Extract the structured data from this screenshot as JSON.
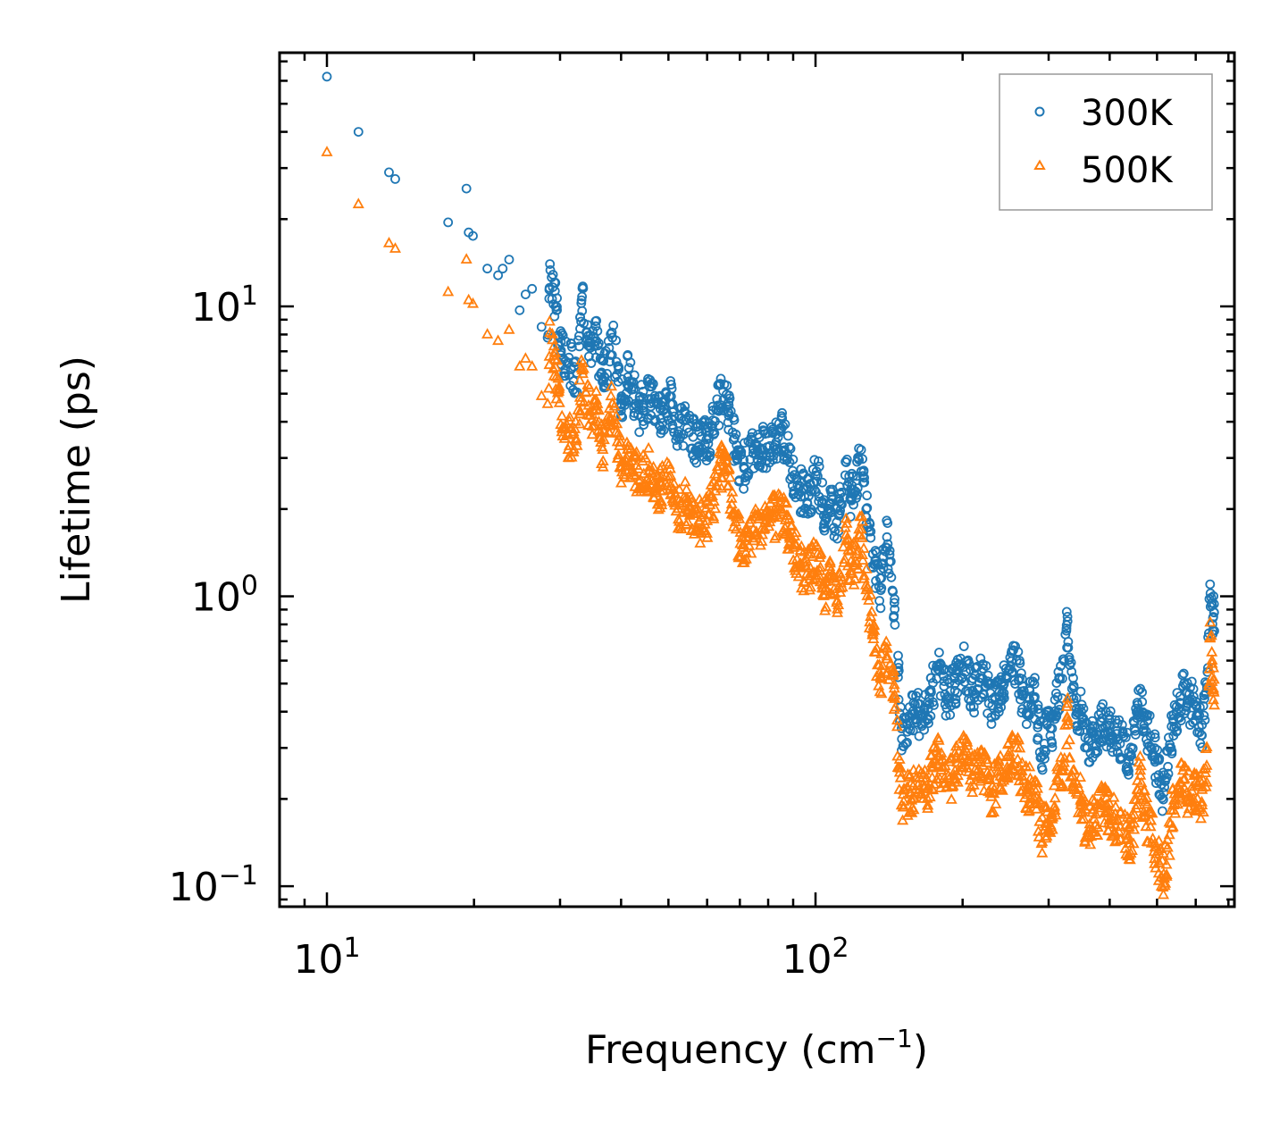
{
  "chart_data": {
    "type": "scatter",
    "title": "",
    "xlabel": "Frequency (cm",
    "xlabel_sup": "−1",
    "xlabel_end": ")",
    "ylabel": "Lifetime (ps)",
    "xscale": "log",
    "yscale": "log",
    "xlim": [
      8,
      720
    ],
    "ylim": [
      0.085,
      75
    ],
    "x_ticks": [
      {
        "value": 10,
        "base": "10",
        "exp": "1"
      },
      {
        "value": 100,
        "base": "10",
        "exp": "2"
      }
    ],
    "y_ticks": [
      {
        "value": 0.1,
        "base": "10",
        "exp": "−1"
      },
      {
        "value": 1,
        "base": "10",
        "exp": "0"
      },
      {
        "value": 10,
        "base": "10",
        "exp": "1"
      }
    ],
    "legend_position": "top-right",
    "series": [
      {
        "name": "300K",
        "marker": "circle",
        "color": "#1f77b4",
        "points": [
          [
            10,
            62
          ],
          [
            11.6,
            40
          ],
          [
            13.4,
            29
          ],
          [
            13.8,
            27.5
          ],
          [
            17.7,
            19.5
          ],
          [
            19.3,
            25.5
          ],
          [
            19.5,
            18
          ],
          [
            19.9,
            17.5
          ],
          [
            21.3,
            13.5
          ],
          [
            22.4,
            12.8
          ],
          [
            22.9,
            13.5
          ],
          [
            23.6,
            14.5
          ],
          [
            24.8,
            9.7
          ],
          [
            25.5,
            11
          ],
          [
            26.3,
            11.5
          ],
          [
            27.5,
            8.5
          ],
          [
            28.3,
            7.8
          ],
          [
            28.6,
            14
          ],
          [
            29.5,
            9.7
          ],
          [
            30.1,
            6.8
          ],
          [
            31.2,
            6.4
          ],
          [
            32.5,
            5.9
          ],
          [
            33.2,
            10.5
          ],
          [
            34.6,
            7.3
          ],
          [
            35.6,
            7.6
          ],
          [
            36.7,
            5.6
          ],
          [
            38.4,
            7.8
          ],
          [
            40.1,
            4.9
          ],
          [
            41.3,
            5.7
          ],
          [
            43.5,
            4.4
          ],
          [
            45.6,
            4.8
          ],
          [
            48.2,
            4.1
          ],
          [
            50.5,
            4.6
          ],
          [
            52.4,
            3.7
          ],
          [
            54.6,
            3.8
          ],
          [
            57.8,
            3.3
          ],
          [
            60.5,
            3.5
          ],
          [
            62.6,
            4.4
          ],
          [
            64.7,
            5.1
          ],
          [
            66.4,
            4.3
          ],
          [
            68.8,
            3.1
          ],
          [
            71.3,
            2.8
          ],
          [
            74.6,
            3.2
          ],
          [
            77.5,
            3.2
          ],
          [
            80.6,
            3.3
          ],
          [
            83.1,
            3.4
          ],
          [
            84.6,
            3.8
          ],
          [
            88.5,
            2.9
          ],
          [
            93.5,
            2.3
          ],
          [
            97.6,
            2.3
          ],
          [
            101,
            2.6
          ],
          [
            104,
            1.9
          ],
          [
            106.8,
            2.1
          ],
          [
            110.5,
            1.8
          ],
          [
            115.5,
            2.9
          ],
          [
            118.2,
            2.2
          ],
          [
            121.5,
            2.6
          ],
          [
            124,
            3.2
          ],
          [
            127,
            2.0
          ],
          [
            131,
            1.4
          ],
          [
            136,
            1.05
          ],
          [
            140,
            1.6
          ],
          [
            145,
            0.95
          ],
          [
            150,
            0.35
          ],
          [
            156,
            0.38
          ],
          [
            162,
            0.39
          ],
          [
            170,
            0.41
          ],
          [
            178,
            0.56
          ],
          [
            186,
            0.45
          ],
          [
            193,
            0.5
          ],
          [
            201,
            0.57
          ],
          [
            210,
            0.47
          ],
          [
            220,
            0.52
          ],
          [
            230,
            0.42
          ],
          [
            240,
            0.5
          ],
          [
            250,
            0.56
          ],
          [
            258,
            0.6
          ],
          [
            264,
            0.47
          ],
          [
            272,
            0.42
          ],
          [
            281,
            0.45
          ],
          [
            290,
            0.28
          ],
          [
            298,
            0.36
          ],
          [
            305,
            0.35
          ],
          [
            313,
            0.45
          ],
          [
            320,
            0.52
          ],
          [
            328,
            0.82
          ],
          [
            335,
            0.48
          ],
          [
            342,
            0.41
          ],
          [
            350,
            0.4
          ],
          [
            360,
            0.3
          ],
          [
            372,
            0.33
          ],
          [
            385,
            0.37
          ],
          [
            395,
            0.36
          ],
          [
            405,
            0.33
          ],
          [
            420,
            0.31
          ],
          [
            440,
            0.28
          ],
          [
            455,
            0.38
          ],
          [
            462,
            0.48
          ],
          [
            470,
            0.35
          ],
          [
            485,
            0.33
          ],
          [
            495,
            0.28
          ],
          [
            505,
            0.23
          ],
          [
            516,
            0.21
          ],
          [
            530,
            0.3
          ],
          [
            540,
            0.37
          ],
          [
            555,
            0.41
          ],
          [
            565,
            0.49
          ],
          [
            575,
            0.42
          ],
          [
            590,
            0.44
          ],
          [
            605,
            0.39
          ],
          [
            618,
            0.36
          ],
          [
            632,
            0.5
          ],
          [
            642,
            1.1
          ],
          [
            648,
            0.93
          ],
          [
            652,
            0.85
          ],
          [
            655,
            0.76
          ]
        ]
      },
      {
        "name": "500K",
        "marker": "triangle",
        "color": "#ff7f0e",
        "points": [
          [
            10,
            34
          ],
          [
            11.6,
            22.5
          ],
          [
            13.4,
            16.5
          ],
          [
            13.8,
            15.8
          ],
          [
            17.7,
            11.2
          ],
          [
            19.3,
            14.5
          ],
          [
            19.5,
            10.5
          ],
          [
            19.9,
            10.2
          ],
          [
            21.3,
            8
          ],
          [
            22.4,
            7.6
          ],
          [
            23.6,
            8.3
          ],
          [
            24.8,
            6.2
          ],
          [
            25.5,
            6.6
          ],
          [
            26.3,
            6.2
          ],
          [
            27.5,
            4.9
          ],
          [
            28.3,
            4.6
          ],
          [
            28.6,
            8.1
          ],
          [
            29.5,
            5.7
          ],
          [
            30.1,
            3.9
          ],
          [
            31.2,
            3.6
          ],
          [
            32.5,
            3.3
          ],
          [
            33.2,
            6.1
          ],
          [
            34.6,
            4.2
          ],
          [
            35.6,
            4.4
          ],
          [
            36.7,
            3.2
          ],
          [
            38.4,
            4.6
          ],
          [
            40.1,
            2.8
          ],
          [
            41.3,
            3.2
          ],
          [
            43.5,
            2.5
          ],
          [
            45.6,
            2.7
          ],
          [
            48.2,
            2.3
          ],
          [
            50.5,
            2.6
          ],
          [
            52.4,
            2.0
          ],
          [
            54.6,
            2.1
          ],
          [
            57.8,
            1.8
          ],
          [
            60.5,
            1.9
          ],
          [
            62.6,
            2.4
          ],
          [
            64.7,
            2.9
          ],
          [
            66.4,
            2.4
          ],
          [
            68.8,
            1.7
          ],
          [
            71.3,
            1.5
          ],
          [
            74.6,
            1.7
          ],
          [
            77.5,
            1.7
          ],
          [
            80.6,
            1.8
          ],
          [
            83.1,
            1.9
          ],
          [
            84.6,
            2.1
          ],
          [
            88.5,
            1.6
          ],
          [
            93.5,
            1.25
          ],
          [
            97.6,
            1.25
          ],
          [
            101,
            1.4
          ],
          [
            104,
            1.0
          ],
          [
            106.8,
            1.15
          ],
          [
            110.5,
            0.95
          ],
          [
            115.5,
            1.55
          ],
          [
            118.2,
            1.2
          ],
          [
            121.5,
            1.4
          ],
          [
            124,
            1.7
          ],
          [
            127,
            1.05
          ],
          [
            131,
            0.75
          ],
          [
            136,
            0.52
          ],
          [
            140,
            0.62
          ],
          [
            145,
            0.48
          ],
          [
            150,
            0.19
          ],
          [
            156,
            0.21
          ],
          [
            162,
            0.21
          ],
          [
            170,
            0.22
          ],
          [
            178,
            0.28
          ],
          [
            186,
            0.22
          ],
          [
            193,
            0.25
          ],
          [
            201,
            0.29
          ],
          [
            210,
            0.24
          ],
          [
            220,
            0.26
          ],
          [
            230,
            0.21
          ],
          [
            240,
            0.25
          ],
          [
            250,
            0.28
          ],
          [
            258,
            0.3
          ],
          [
            264,
            0.24
          ],
          [
            272,
            0.21
          ],
          [
            281,
            0.23
          ],
          [
            290,
            0.14
          ],
          [
            298,
            0.18
          ],
          [
            305,
            0.17
          ],
          [
            313,
            0.23
          ],
          [
            320,
            0.26
          ],
          [
            328,
            0.38
          ],
          [
            335,
            0.24
          ],
          [
            342,
            0.21
          ],
          [
            350,
            0.2
          ],
          [
            360,
            0.15
          ],
          [
            372,
            0.17
          ],
          [
            385,
            0.19
          ],
          [
            395,
            0.18
          ],
          [
            405,
            0.17
          ],
          [
            420,
            0.16
          ],
          [
            440,
            0.14
          ],
          [
            455,
            0.19
          ],
          [
            462,
            0.25
          ],
          [
            470,
            0.18
          ],
          [
            485,
            0.16
          ],
          [
            495,
            0.14
          ],
          [
            505,
            0.12
          ],
          [
            516,
            0.11
          ],
          [
            530,
            0.15
          ],
          [
            540,
            0.19
          ],
          [
            555,
            0.21
          ],
          [
            565,
            0.25
          ],
          [
            575,
            0.21
          ],
          [
            590,
            0.22
          ],
          [
            605,
            0.2
          ],
          [
            618,
            0.19
          ],
          [
            632,
            0.26
          ],
          [
            642,
            0.72
          ],
          [
            648,
            0.6
          ],
          [
            652,
            0.48
          ],
          [
            655,
            0.42
          ]
        ]
      }
    ]
  }
}
